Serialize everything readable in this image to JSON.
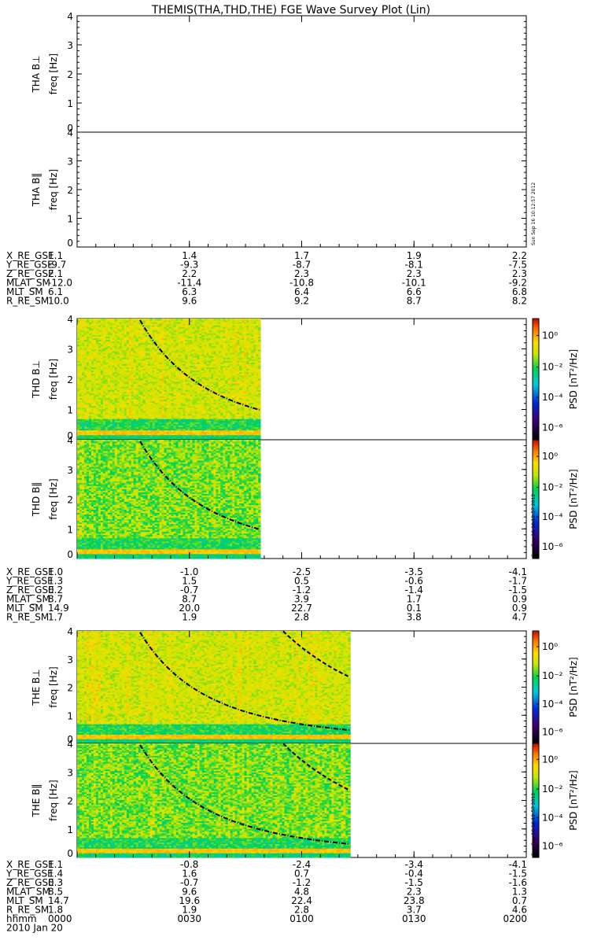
{
  "title": "THEMIS(THA,THD,THE) FGE Wave Survey Plot (Lin)",
  "timestamp": "Sun Sep 16 10:12:57 2012",
  "chart_data": {
    "type": "heatmap",
    "xlabel": "hhmm",
    "date_label": "2010 Jan 20",
    "xticks": [
      "0000",
      "0030",
      "0100",
      "0130",
      "0200"
    ],
    "freq_unit_label": "freq [Hz]",
    "ylim": [
      0,
      4
    ],
    "yticks": [
      "0",
      "1",
      "2",
      "3",
      "4"
    ],
    "colorbar": {
      "label": "PSD [nT²/Hz]",
      "scale": "log",
      "ticks": [
        "10⁰",
        "10⁻²",
        "10⁻⁴",
        "10⁻⁶"
      ]
    },
    "panels": [
      {
        "probe": "THA",
        "label": "THA B⊥",
        "has_data": false,
        "data_end": null
      },
      {
        "probe": "THA",
        "label": "THA B‖",
        "has_data": false,
        "data_end": null
      },
      {
        "probe": "THD",
        "label": "THD B⊥",
        "has_data": true,
        "data_end": "0049"
      },
      {
        "probe": "THD",
        "label": "THD B‖",
        "has_data": true,
        "data_end": "0049"
      },
      {
        "probe": "THE",
        "label": "THE B⊥",
        "has_data": true,
        "data_end": "0113"
      },
      {
        "probe": "THE",
        "label": "THE B‖",
        "has_data": true,
        "data_end": "0113"
      }
    ],
    "ephemeris": [
      {
        "probe": "THA",
        "rows": [
          {
            "name": "X_RE_GSE",
            "values": [
              "1.1",
              "1.4",
              "1.7",
              "1.9",
              "2.2"
            ]
          },
          {
            "name": "Y_RE_GSE",
            "values": [
              "-9.7",
              "-9.3",
              "-8.7",
              "-8.1",
              "-7.5"
            ]
          },
          {
            "name": "Z_RE_GSE",
            "values": [
              "2.1",
              "2.2",
              "2.3",
              "2.3",
              "2.3"
            ]
          },
          {
            "name": "MLAT_SM",
            "values": [
              "-12.0",
              "-11.4",
              "-10.8",
              "-10.1",
              "-9.2"
            ]
          },
          {
            "name": "MLT_SM",
            "values": [
              "6.1",
              "6.3",
              "6.4",
              "6.6",
              "6.8"
            ]
          },
          {
            "name": "R_RE_SM",
            "values": [
              "10.0",
              "9.6",
              "9.2",
              "8.7",
              "8.2"
            ]
          }
        ]
      },
      {
        "probe": "THD",
        "rows": [
          {
            "name": "X_RE_GSE",
            "values": [
              "1.0",
              "-1.0",
              "-2.5",
              "-3.5",
              "-4.1"
            ]
          },
          {
            "name": "Y_RE_GSE",
            "values": [
              "1.3",
              "1.5",
              "0.5",
              "-0.6",
              "-1.7"
            ]
          },
          {
            "name": "Z_RE_GSE",
            "values": [
              "0.2",
              "-0.7",
              "-1.2",
              "-1.4",
              "-1.5"
            ]
          },
          {
            "name": "MLAT_SM",
            "values": [
              "8.7",
              "8.7",
              "3.9",
              "1.7",
              "0.9"
            ]
          },
          {
            "name": "MLT_SM",
            "values": [
              "14.9",
              "20.0",
              "22.7",
              "0.1",
              "0.9"
            ]
          },
          {
            "name": "R_RE_SM",
            "values": [
              "1.7",
              "1.9",
              "2.8",
              "3.8",
              "4.7"
            ]
          }
        ]
      },
      {
        "probe": "THE",
        "rows": [
          {
            "name": "X_RE_GSE",
            "values": [
              "1.1",
              "-0.8",
              "-2.4",
              "-3.4",
              "-4.1"
            ]
          },
          {
            "name": "Y_RE_GSE",
            "values": [
              "1.4",
              "1.6",
              "0.7",
              "-0.4",
              "-1.5"
            ]
          },
          {
            "name": "Z_RE_GSE",
            "values": [
              "0.3",
              "-0.7",
              "-1.2",
              "-1.5",
              "-1.6"
            ]
          },
          {
            "name": "MLAT_SM",
            "values": [
              "8.5",
              "9.6",
              "4.8",
              "2.3",
              "1.3"
            ]
          },
          {
            "name": "MLT_SM",
            "values": [
              "14.7",
              "19.6",
              "22.4",
              "23.8",
              "0.7"
            ]
          },
          {
            "name": "R_RE_SM",
            "values": [
              "1.8",
              "1.9",
              "2.8",
              "3.7",
              "4.6"
            ]
          }
        ]
      }
    ]
  }
}
